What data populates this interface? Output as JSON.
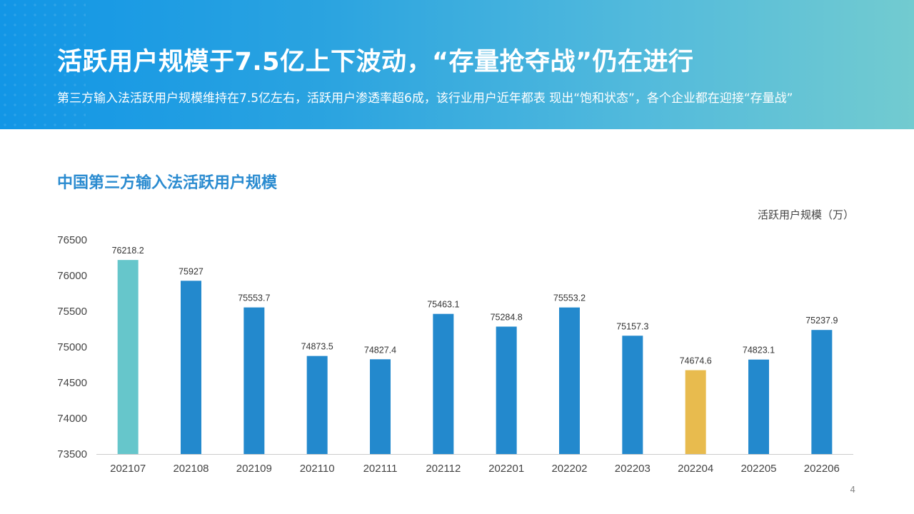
{
  "header": {
    "title": "活跃用户规模于7.5亿上下波动，“存量抢夺战”仍在进行",
    "subtitle": "第三方输入法活跃用户规模维持在7.5亿左右，活跃用户渗透率超6成，该行业用户近年都表 现出“饱和状态”，各个企业都在迎接“存量战”"
  },
  "page_number": "4",
  "chart_data": {
    "type": "bar",
    "title": "中国第三方输入法活跃用户规模",
    "ylabel": "活跃用户规模（万）",
    "xlabel": "",
    "categories": [
      "202107",
      "202108",
      "202109",
      "202110",
      "202111",
      "202112",
      "202201",
      "202202",
      "202203",
      "202204",
      "202205",
      "202206"
    ],
    "values": [
      76218.2,
      75927,
      75553.7,
      74873.5,
      74827.4,
      75463.1,
      75284.8,
      75553.2,
      75157.3,
      74674.6,
      74823.1,
      75237.9
    ],
    "value_labels": [
      "76218.2",
      "75927",
      "75553.7",
      "74873.5",
      "74827.4",
      "75463.1",
      "75284.8",
      "75553.2",
      "75157.3",
      "74674.6",
      "74823.1",
      "75237.9"
    ],
    "ylim": [
      73500,
      76500
    ],
    "yticks": [
      "73500",
      "74000",
      "74500",
      "75000",
      "75500",
      "76000",
      "76500"
    ],
    "grid": false,
    "colors": {
      "default": "#2389cd",
      "highlight_max": "#66c6cb",
      "highlight_min": "#e8bb4e"
    },
    "bar_colors": [
      "#66c6cb",
      "#2389cd",
      "#2389cd",
      "#2389cd",
      "#2389cd",
      "#2389cd",
      "#2389cd",
      "#2389cd",
      "#2389cd",
      "#e8bb4e",
      "#2389cd",
      "#2389cd"
    ]
  }
}
